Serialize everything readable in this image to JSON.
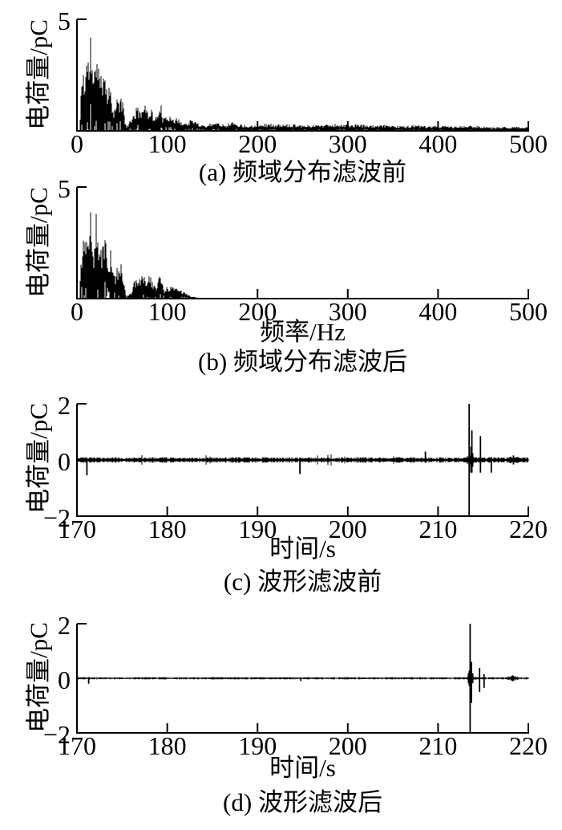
{
  "figure": {
    "background": "#ffffff",
    "ink": "#000000"
  },
  "chart_data": [
    {
      "id": "a",
      "type": "line",
      "kind": "spectrum",
      "caption": "(a) 频域分布滤波前",
      "xlabel": "",
      "ylabel": "电荷量/pC",
      "xlim": [
        0,
        500
      ],
      "ylim": [
        0,
        5
      ],
      "xticks": [
        0,
        100,
        200,
        300,
        400,
        500
      ],
      "xticklabels": [
        "0",
        "100",
        "200",
        "300",
        "400",
        "500"
      ],
      "yticks": [
        5
      ],
      "yticklabels": [
        "5"
      ],
      "grid": false,
      "legend": null,
      "seed": 11,
      "envelope": [
        [
          3,
          0.3
        ],
        [
          5,
          2.6
        ],
        [
          7,
          3.0
        ],
        [
          9,
          2.5
        ],
        [
          11,
          3.9
        ],
        [
          13,
          3.2
        ],
        [
          15,
          4.9
        ],
        [
          17,
          3.0
        ],
        [
          19,
          2.2
        ],
        [
          21,
          4.6
        ],
        [
          23,
          3.6
        ],
        [
          25,
          2.8
        ],
        [
          27,
          2.4
        ],
        [
          29,
          3.3
        ],
        [
          31,
          3.4
        ],
        [
          33,
          2.2
        ],
        [
          35,
          2.0
        ],
        [
          37,
          2.3
        ],
        [
          39,
          1.6
        ],
        [
          41,
          1.0
        ],
        [
          43,
          1.2
        ],
        [
          45,
          1.6
        ],
        [
          47,
          1.5
        ],
        [
          49,
          1.7
        ],
        [
          51,
          1.2
        ],
        [
          53,
          0.6
        ],
        [
          55,
          0.15
        ],
        [
          58,
          0.5
        ],
        [
          60,
          0.45
        ],
        [
          63,
          0.9
        ],
        [
          66,
          1.05
        ],
        [
          70,
          1.1
        ],
        [
          74,
          1.2
        ],
        [
          78,
          1.05
        ],
        [
          82,
          1.1
        ],
        [
          85,
          0.75
        ],
        [
          88,
          0.6
        ],
        [
          90,
          0.9
        ],
        [
          92,
          1.75
        ],
        [
          94,
          0.8
        ],
        [
          97,
          0.55
        ],
        [
          100,
          0.7
        ],
        [
          104,
          0.85
        ],
        [
          108,
          0.6
        ],
        [
          112,
          0.55
        ],
        [
          116,
          0.45
        ],
        [
          120,
          0.35
        ],
        [
          126,
          0.5
        ],
        [
          132,
          0.45
        ],
        [
          138,
          0.3
        ],
        [
          144,
          0.25
        ],
        [
          150,
          0.42
        ],
        [
          158,
          0.38
        ],
        [
          165,
          0.3
        ],
        [
          172,
          0.42
        ],
        [
          180,
          0.32
        ],
        [
          190,
          0.25
        ],
        [
          200,
          0.3
        ],
        [
          212,
          0.33
        ],
        [
          225,
          0.28
        ],
        [
          240,
          0.32
        ],
        [
          255,
          0.26
        ],
        [
          270,
          0.3
        ],
        [
          285,
          0.32
        ],
        [
          300,
          0.28
        ],
        [
          315,
          0.3
        ],
        [
          330,
          0.24
        ],
        [
          345,
          0.28
        ],
        [
          360,
          0.22
        ],
        [
          375,
          0.26
        ],
        [
          390,
          0.2
        ],
        [
          405,
          0.24
        ],
        [
          420,
          0.2
        ],
        [
          435,
          0.24
        ],
        [
          450,
          0.2
        ],
        [
          465,
          0.17
        ],
        [
          480,
          0.2
        ],
        [
          500,
          0.16
        ]
      ]
    },
    {
      "id": "b",
      "type": "line",
      "kind": "spectrum",
      "caption": "(b) 频域分布滤波后",
      "xlabel": "频率/Hz",
      "ylabel": "电荷量/pC",
      "xlim": [
        0,
        500
      ],
      "ylim": [
        0,
        5
      ],
      "xticks": [
        0,
        100,
        200,
        300,
        400,
        500
      ],
      "xticklabels": [
        "0",
        "100",
        "200",
        "300",
        "400",
        "500"
      ],
      "yticks": [
        5
      ],
      "yticklabels": [
        "5"
      ],
      "grid": false,
      "legend": null,
      "seed": 12,
      "envelope": [
        [
          3,
          0.3
        ],
        [
          5,
          2.6
        ],
        [
          7,
          3.0
        ],
        [
          9,
          2.5
        ],
        [
          11,
          3.9
        ],
        [
          13,
          3.2
        ],
        [
          15,
          4.9
        ],
        [
          17,
          3.0
        ],
        [
          19,
          2.2
        ],
        [
          21,
          4.6
        ],
        [
          23,
          3.6
        ],
        [
          25,
          2.8
        ],
        [
          27,
          2.4
        ],
        [
          29,
          3.3
        ],
        [
          31,
          3.4
        ],
        [
          33,
          2.2
        ],
        [
          35,
          2.0
        ],
        [
          37,
          2.3
        ],
        [
          39,
          1.6
        ],
        [
          41,
          1.0
        ],
        [
          43,
          1.2
        ],
        [
          45,
          1.6
        ],
        [
          47,
          1.5
        ],
        [
          49,
          1.7
        ],
        [
          51,
          1.2
        ],
        [
          53,
          0.5
        ],
        [
          55,
          0.1
        ],
        [
          58,
          0.25
        ],
        [
          60,
          0.3
        ],
        [
          63,
          0.85
        ],
        [
          66,
          1.0
        ],
        [
          70,
          1.1
        ],
        [
          74,
          1.15
        ],
        [
          78,
          1.0
        ],
        [
          82,
          1.05
        ],
        [
          85,
          0.7
        ],
        [
          88,
          0.5
        ],
        [
          90,
          0.85
        ],
        [
          92,
          1.7
        ],
        [
          94,
          0.7
        ],
        [
          97,
          0.45
        ],
        [
          100,
          0.55
        ],
        [
          104,
          0.7
        ],
        [
          108,
          0.5
        ],
        [
          112,
          0.5
        ],
        [
          116,
          0.35
        ],
        [
          120,
          0.28
        ],
        [
          124,
          0.18
        ],
        [
          128,
          0.1
        ],
        [
          132,
          0.05
        ],
        [
          136,
          0.02
        ],
        [
          140,
          0
        ],
        [
          500,
          0
        ]
      ]
    },
    {
      "id": "c",
      "type": "line",
      "kind": "waveform",
      "caption": "(c) 波形滤波前",
      "xlabel": "时间/s",
      "ylabel": "电荷量/pC",
      "xlim": [
        170,
        220
      ],
      "ylim": [
        -2,
        2
      ],
      "xticks": [
        170,
        180,
        190,
        200,
        210,
        220
      ],
      "xticklabels": [
        "170",
        "180",
        "190",
        "200",
        "210",
        "220"
      ],
      "yticks": [
        2,
        0,
        -2
      ],
      "yticklabels": [
        "2",
        "0",
        "−2"
      ],
      "grid": false,
      "legend": null,
      "seed": 23,
      "noise_amp": 0.09,
      "micro": [
        0.985,
        2.2
      ],
      "spikes": [
        [
          171.1,
          0.05,
          -0.55
        ],
        [
          194.7,
          0.08,
          -0.5
        ],
        [
          208.6,
          0.3,
          -0.1
        ],
        [
          213.45,
          2,
          -2
        ],
        [
          213.75,
          1.05,
          -0.45
        ],
        [
          214.7,
          0.85,
          -0.45
        ],
        [
          215.9,
          0.1,
          -0.45
        ],
        [
          218.35,
          0.16,
          -0.16
        ]
      ],
      "clusters": [
        [
          213.6,
          0.45,
          0.45
        ],
        [
          218.3,
          0.9,
          0.08
        ]
      ]
    },
    {
      "id": "d",
      "type": "line",
      "kind": "waveform",
      "caption": "(d) 波形滤波后",
      "xlabel": "时间/s",
      "ylabel": "电荷量/pC",
      "xlim": [
        170,
        220
      ],
      "ylim": [
        -2,
        2
      ],
      "xticks": [
        170,
        180,
        190,
        200,
        210,
        220
      ],
      "xticklabels": [
        "170",
        "180",
        "190",
        "200",
        "210",
        "220"
      ],
      "yticks": [
        2,
        0,
        -2
      ],
      "yticklabels": [
        "2",
        "0",
        "−2"
      ],
      "grid": false,
      "legend": null,
      "seed": 37,
      "noise_amp": 0.04,
      "micro": [
        0.993,
        2.0
      ],
      "spikes": [
        [
          171.3,
          0.04,
          -0.2
        ],
        [
          194.8,
          0.03,
          -0.1
        ],
        [
          213.55,
          2,
          -2
        ],
        [
          213.7,
          0.6,
          -0.9
        ],
        [
          214.6,
          0.38,
          -0.5
        ],
        [
          215.1,
          0.15,
          -0.35
        ]
      ],
      "clusters": [
        [
          213.6,
          0.4,
          0.55
        ],
        [
          218.25,
          0.8,
          0.09
        ]
      ]
    }
  ]
}
